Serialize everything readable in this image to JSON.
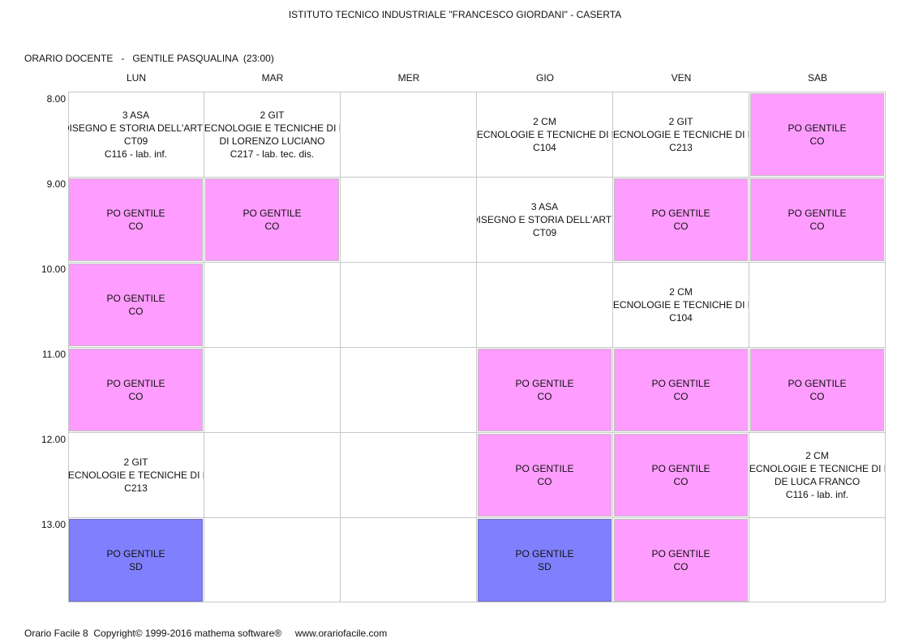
{
  "header": {
    "school": "ISTITUTO TECNICO INDUSTRIALE \"FRANCESCO GIORDANI\" - CASERTA",
    "teacher_line": "ORARIO DOCENTE   -   GENTILE PASQUALINA  (23:00)"
  },
  "days": [
    "LUN",
    "MAR",
    "MER",
    "GIO",
    "VEN",
    "SAB"
  ],
  "times": [
    "8.00",
    "9.00",
    "10.00",
    "11.00",
    "12.00",
    "13.00"
  ],
  "slots": {
    "lun_1": [
      "3 ASA",
      "DISEGNO E STORIA DELL'ARTE",
      "CT09",
      "C116 - lab. inf."
    ],
    "mar_1": [
      "2 GIT",
      "TECNOLOGIE E TECNICHE DI R",
      "DI LORENZO LUCIANO",
      "C217 - lab. tec. dis."
    ],
    "gio_1": [
      "2 CM",
      "TECNOLOGIE E TECNICHE DI R",
      "C104"
    ],
    "ven_1": [
      "2 GIT",
      "TECNOLOGIE E TECNICHE DI R",
      "C213"
    ],
    "sab_1": [
      "PO GENTILE",
      "CO"
    ],
    "lun_2": [
      "PO GENTILE",
      "CO"
    ],
    "mar_2": [
      "PO GENTILE",
      "CO"
    ],
    "gio_2": [
      "3 ASA",
      "DISEGNO E STORIA DELL'ARTE",
      "CT09"
    ],
    "ven_2": [
      "PO GENTILE",
      "CO"
    ],
    "sab_2": [
      "PO GENTILE",
      "CO"
    ],
    "lun_3": [
      "PO GENTILE",
      "CO"
    ],
    "ven_3": [
      "2 CM",
      "TECNOLOGIE E TECNICHE DI R",
      "C104"
    ],
    "lun_4": [
      "PO GENTILE",
      "CO"
    ],
    "gio_4": [
      "PO GENTILE",
      "CO"
    ],
    "ven_4": [
      "PO GENTILE",
      "CO"
    ],
    "sab_4": [
      "PO GENTILE",
      "CO"
    ],
    "lun_5": [
      "2 GIT",
      "TECNOLOGIE E TECNICHE DI R",
      "C213"
    ],
    "gio_5": [
      "PO GENTILE",
      "CO"
    ],
    "ven_5": [
      "PO GENTILE",
      "CO"
    ],
    "sab_5": [
      "2 CM",
      "TECNOLOGIE E TECNICHE DI R",
      "DE LUCA FRANCO",
      "C116 - lab. inf."
    ],
    "lun_6": [
      "PO GENTILE",
      "SD"
    ],
    "gio_6": [
      "PO GENTILE",
      "SD"
    ],
    "ven_6": [
      "PO GENTILE",
      "CO"
    ]
  },
  "colors": {
    "co": "#ff9cff",
    "sd": "#8080ff",
    "grid": "#c8c8c8"
  },
  "footer": "Orario Facile 8  Copyright© 1999-2016 mathema software®     www.orariofacile.com"
}
